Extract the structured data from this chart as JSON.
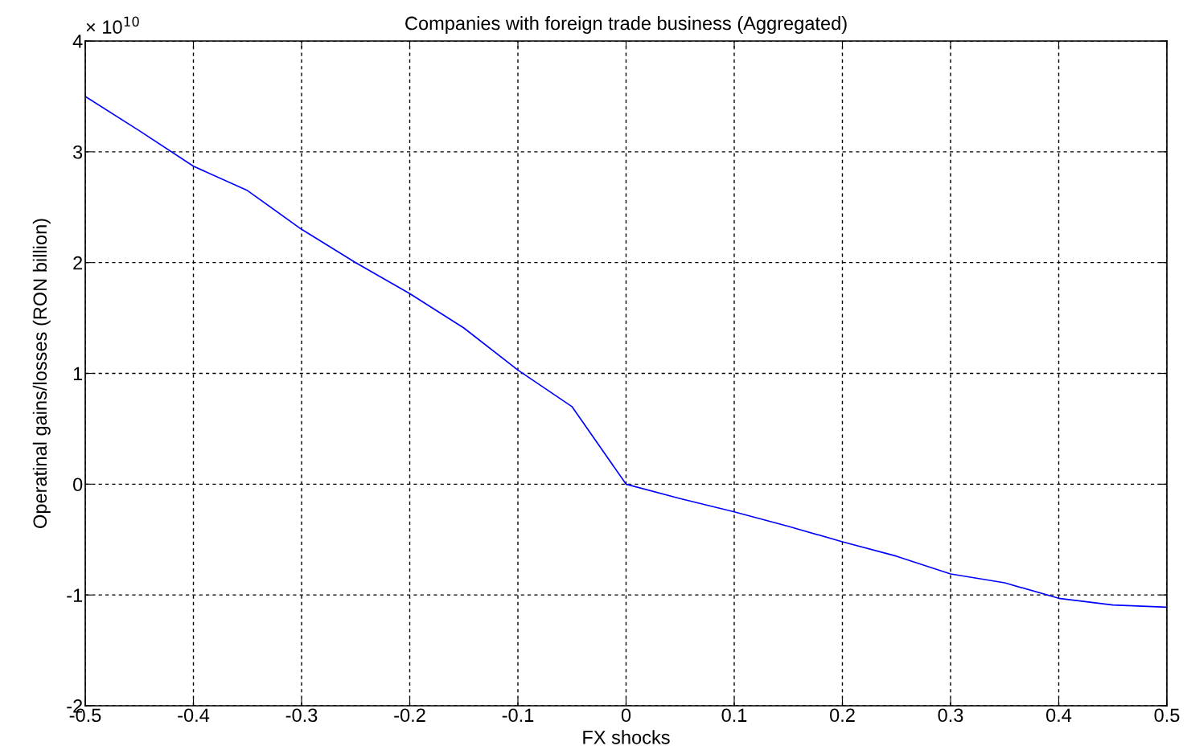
{
  "chart_data": {
    "type": "line",
    "title": "Companies with foreign trade business (Aggregated)",
    "xlabel": "FX shocks",
    "ylabel": "Operatinal gains/losses (RON billion)",
    "annotations": [
      "× 10$^{10}$"
    ],
    "x": [
      -0.5,
      -0.45,
      -0.4,
      -0.35,
      -0.3,
      -0.25,
      -0.2,
      -0.15,
      -0.1,
      -0.05,
      0,
      0.05,
      0.1,
      0.15,
      0.2,
      0.25,
      0.3,
      0.35,
      0.4,
      0.45,
      0.5
    ],
    "series": [
      {
        "color": "#0000ff",
        "values": [
          3.5,
          3.19,
          2.87,
          2.65,
          2.3,
          2.0,
          1.72,
          1.41,
          1.03,
          0.7,
          0.0,
          -0.13,
          -0.25,
          -0.38,
          -0.52,
          -0.65,
          -0.81,
          -0.89,
          -1.03,
          -1.09,
          -1.11
        ]
      }
    ],
    "xlim": [
      -0.5,
      0.5
    ],
    "ylim": [
      -2,
      4
    ],
    "xticks": [
      -0.5,
      -0.4,
      -0.3,
      -0.2,
      -0.1,
      0,
      0.1,
      0.2,
      0.3,
      0.4,
      0.5
    ],
    "yticks": [
      -2,
      -1,
      0,
      1,
      2,
      3,
      4
    ],
    "grid": true,
    "line_style": "solid",
    "marker": "none"
  }
}
